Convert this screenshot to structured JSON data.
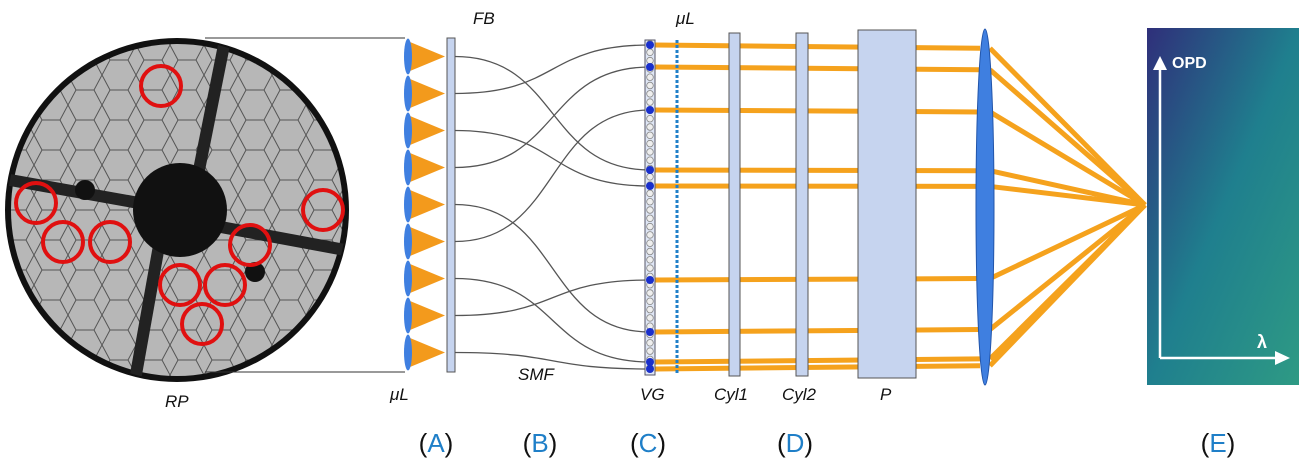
{
  "labels": {
    "fb": "FB",
    "ml_a": "μL",
    "ml_c": "μL",
    "smf": "SMF",
    "vg": "VG",
    "cyl1": "Cyl1",
    "cyl2": "Cyl2",
    "p": "P",
    "rp": "RP",
    "opd": "OPD",
    "lambda": "λ"
  },
  "sections": [
    [
      "(",
      "A",
      ")"
    ],
    [
      "(",
      "B",
      ")"
    ],
    [
      "(",
      "C",
      ")"
    ],
    [
      "(",
      "D",
      ")"
    ],
    [
      "(",
      "E",
      ")"
    ]
  ]
}
